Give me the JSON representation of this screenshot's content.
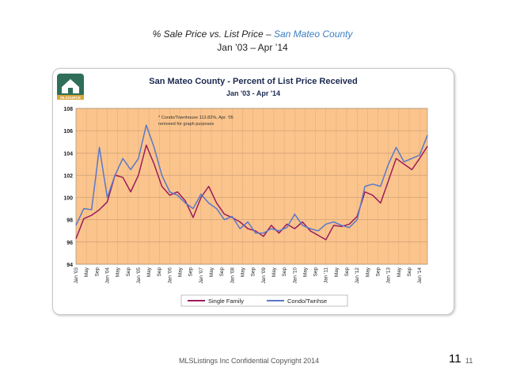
{
  "slide": {
    "title_prefix": "% Sale Price vs. List Price – ",
    "title_county": "San Mateo County",
    "subtitle": "Jan ’03 – Apr ’14",
    "footer": "MLSListings Inc Confidential Copyright 2014",
    "page_number_large": "11",
    "page_number_small": "11"
  },
  "logo": {
    "text": "MLSOURCE"
  },
  "colors": {
    "plot_bg": "#fbc48c",
    "single_family": "#9c1c5c",
    "condo": "#5a78c8"
  },
  "chart_data": {
    "type": "line",
    "title": "San Mateo County - Percent of List Price Received",
    "subtitle": "Jan '03 - Apr '14",
    "annotation": [
      "* Condo/Townhouse 113.82%, Apr. '05",
      "removed for graph purposes"
    ],
    "ylim": [
      94,
      108
    ],
    "yticks": [
      94,
      96,
      98,
      100,
      102,
      104,
      106,
      108
    ],
    "xticks": [
      "Jan '03",
      "May",
      "Sep",
      "Jan '04",
      "May",
      "Sep",
      "Jan '05",
      "May",
      "Sep",
      "Jan '06",
      "May",
      "Sep",
      "Jan '07",
      "May",
      "Sep",
      "Jan '08",
      "May",
      "Sep",
      "Jan '09",
      "May",
      "Sep",
      "Jan '10",
      "May",
      "Sep",
      "Jan '11",
      "May",
      "Sep",
      "Jan '12",
      "May",
      "Sep",
      "Jan '13",
      "May",
      "Sep",
      "Jan '14"
    ],
    "x_start": "2003-01",
    "x_end": "2014-04",
    "grid": true,
    "legend_position": "bottom",
    "series": [
      {
        "name": "Single Family",
        "color": "#9c1c5c",
        "values": [
          [
            2003.0,
            96.3
          ],
          [
            2003.25,
            98.1
          ],
          [
            2003.5,
            98.4
          ],
          [
            2003.75,
            98.9
          ],
          [
            2004.0,
            99.6
          ],
          [
            2004.25,
            102.0
          ],
          [
            2004.5,
            101.8
          ],
          [
            2004.75,
            100.5
          ],
          [
            2005.0,
            102.0
          ],
          [
            2005.25,
            104.7
          ],
          [
            2005.5,
            103.0
          ],
          [
            2005.75,
            101.0
          ],
          [
            2006.0,
            100.2
          ],
          [
            2006.25,
            100.5
          ],
          [
            2006.5,
            99.7
          ],
          [
            2006.75,
            98.2
          ],
          [
            2007.0,
            100.0
          ],
          [
            2007.25,
            101.0
          ],
          [
            2007.5,
            99.5
          ],
          [
            2007.75,
            98.5
          ],
          [
            2008.0,
            98.2
          ],
          [
            2008.25,
            97.8
          ],
          [
            2008.5,
            97.2
          ],
          [
            2008.75,
            97.0
          ],
          [
            2009.0,
            96.5
          ],
          [
            2009.25,
            97.5
          ],
          [
            2009.5,
            96.8
          ],
          [
            2009.75,
            97.6
          ],
          [
            2010.0,
            97.2
          ],
          [
            2010.25,
            97.8
          ],
          [
            2010.5,
            97.0
          ],
          [
            2010.75,
            96.6
          ],
          [
            2011.0,
            96.2
          ],
          [
            2011.25,
            97.5
          ],
          [
            2011.5,
            97.4
          ],
          [
            2011.75,
            97.6
          ],
          [
            2012.0,
            98.3
          ],
          [
            2012.25,
            100.5
          ],
          [
            2012.5,
            100.2
          ],
          [
            2012.75,
            99.5
          ],
          [
            2013.0,
            101.5
          ],
          [
            2013.25,
            103.5
          ],
          [
            2013.5,
            103.0
          ],
          [
            2013.75,
            102.5
          ],
          [
            2014.0,
            103.5
          ],
          [
            2014.25,
            104.6
          ]
        ]
      },
      {
        "name": "Condo/Twnhse",
        "color": "#5a78c8",
        "values": [
          [
            2003.0,
            97.5
          ],
          [
            2003.25,
            99.0
          ],
          [
            2003.5,
            98.9
          ],
          [
            2003.75,
            104.5
          ],
          [
            2004.0,
            100.0
          ],
          [
            2004.25,
            102.0
          ],
          [
            2004.5,
            103.5
          ],
          [
            2004.75,
            102.5
          ],
          [
            2005.0,
            103.5
          ],
          [
            2005.25,
            106.5
          ],
          [
            2005.5,
            104.5
          ],
          [
            2005.75,
            102.0
          ],
          [
            2006.0,
            100.5
          ],
          [
            2006.25,
            100.2
          ],
          [
            2006.5,
            99.5
          ],
          [
            2006.75,
            99.0
          ],
          [
            2007.0,
            100.3
          ],
          [
            2007.25,
            99.5
          ],
          [
            2007.5,
            99.0
          ],
          [
            2007.75,
            98.0
          ],
          [
            2008.0,
            98.3
          ],
          [
            2008.25,
            97.2
          ],
          [
            2008.5,
            97.8
          ],
          [
            2008.75,
            96.8
          ],
          [
            2009.0,
            96.8
          ],
          [
            2009.25,
            97.2
          ],
          [
            2009.5,
            97.0
          ],
          [
            2009.75,
            97.3
          ],
          [
            2010.0,
            98.5
          ],
          [
            2010.25,
            97.5
          ],
          [
            2010.5,
            97.2
          ],
          [
            2010.75,
            97.0
          ],
          [
            2011.0,
            97.6
          ],
          [
            2011.25,
            97.8
          ],
          [
            2011.5,
            97.5
          ],
          [
            2011.75,
            97.3
          ],
          [
            2012.0,
            98.0
          ],
          [
            2012.25,
            101.0
          ],
          [
            2012.5,
            101.2
          ],
          [
            2012.75,
            101.0
          ],
          [
            2013.0,
            103.0
          ],
          [
            2013.25,
            104.5
          ],
          [
            2013.5,
            103.2
          ],
          [
            2013.75,
            103.5
          ],
          [
            2014.0,
            103.8
          ],
          [
            2014.25,
            105.6
          ]
        ]
      }
    ]
  }
}
